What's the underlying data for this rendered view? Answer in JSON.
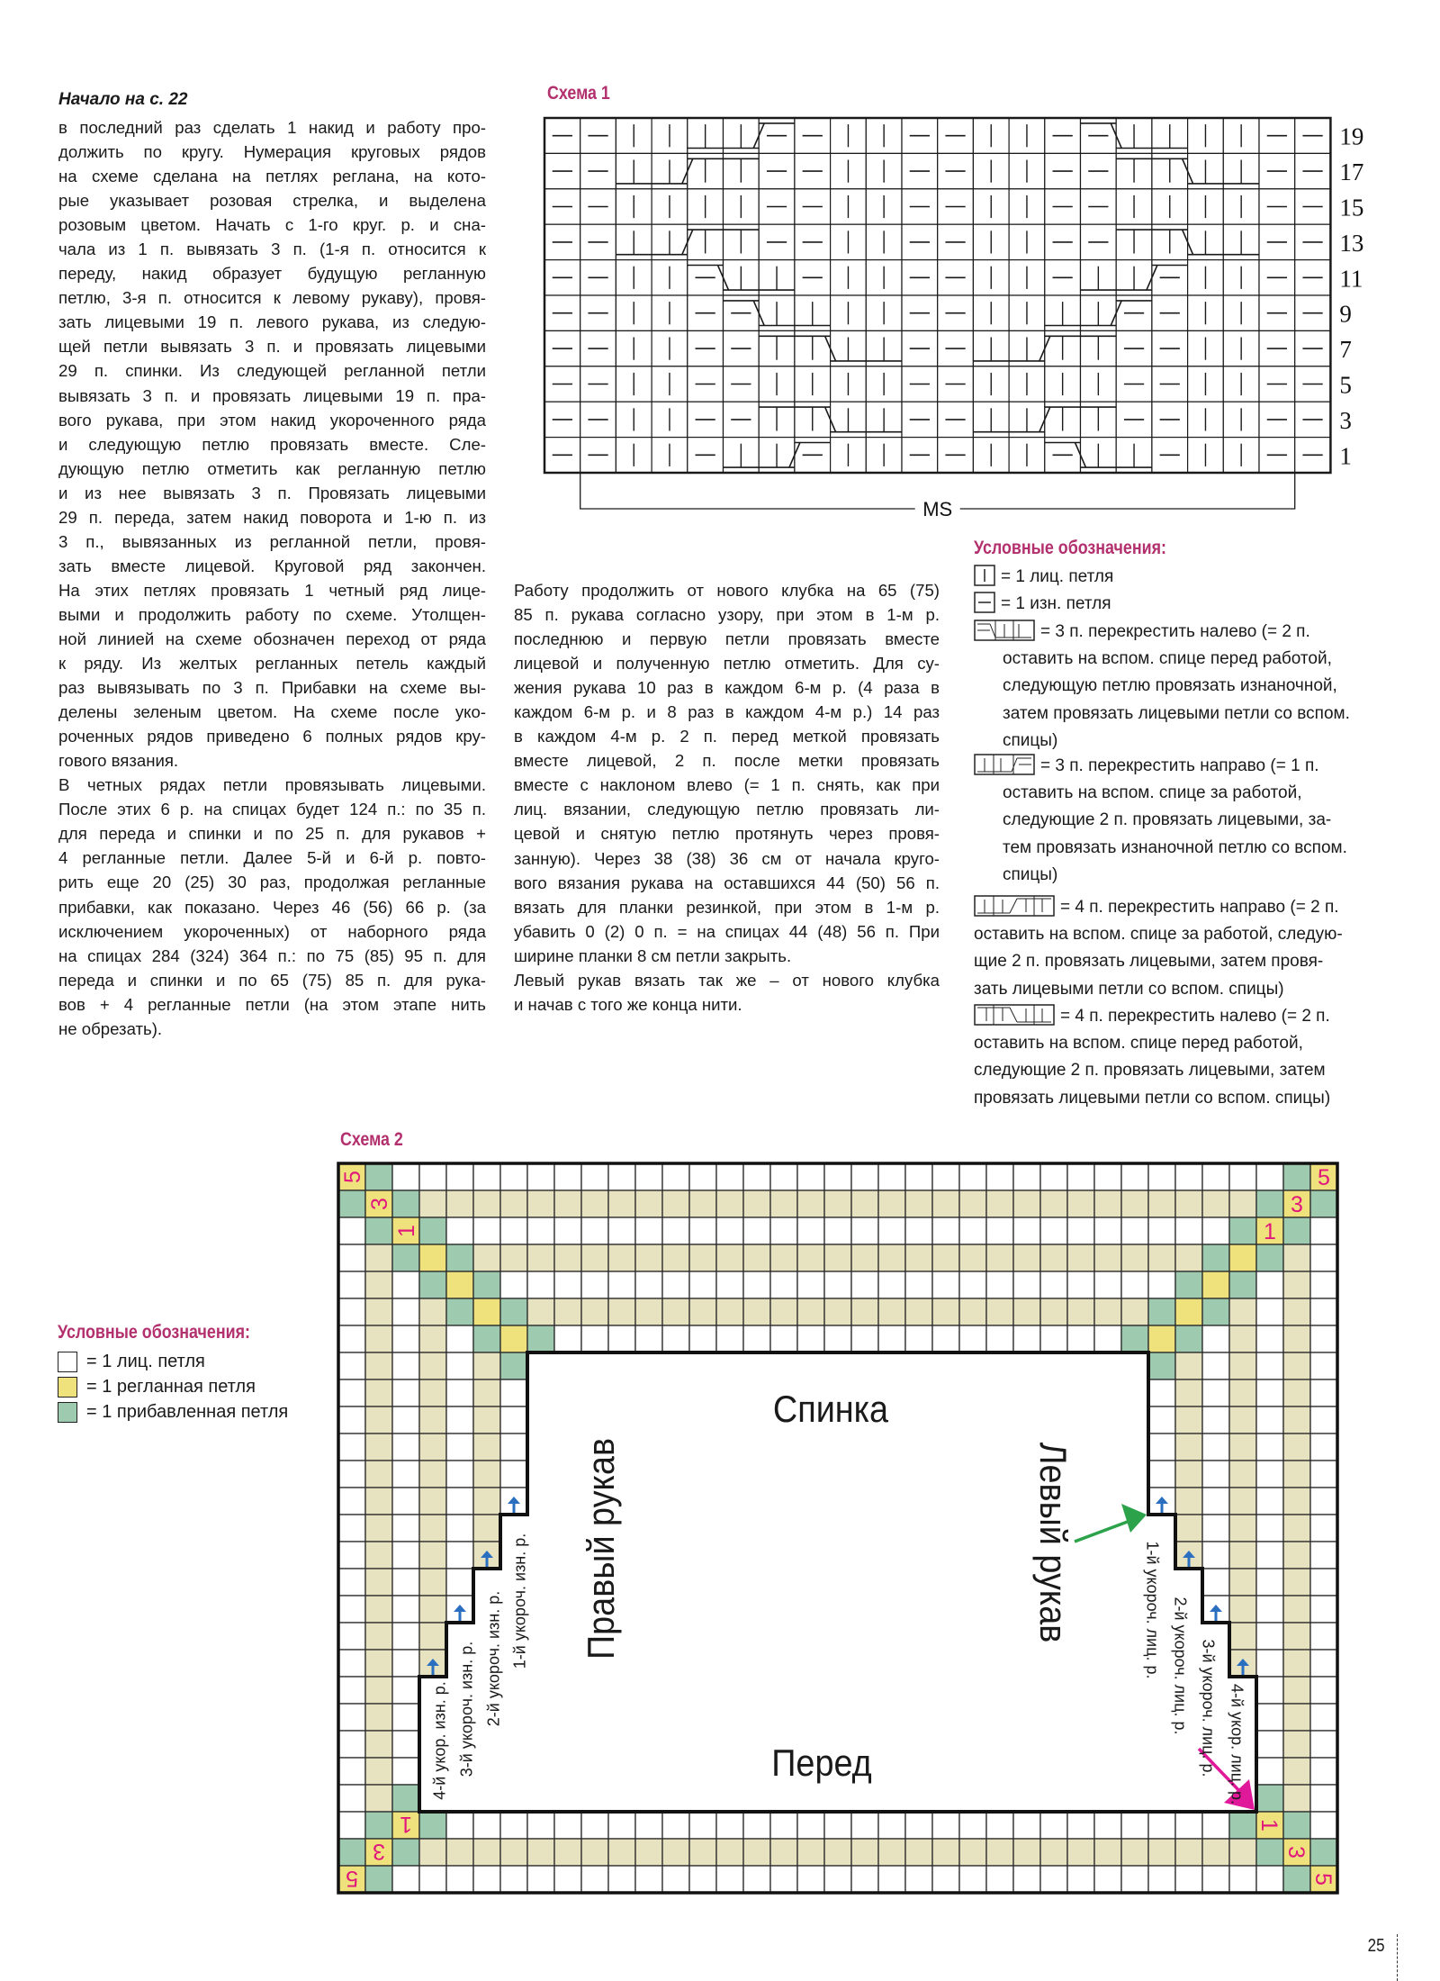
{
  "page": {
    "continued_from": "Начало на с. 22",
    "page_number": "25"
  },
  "left_column": {
    "lines": [
      "в последний раз сделать 1 накид и работу про-",
      "должить по кругу. Нумерация круговых рядов",
      "на схеме сделана на петлях реглана, на кото-",
      "рые указывает розовая стрелка, и выделена",
      "розовым цветом. Начать с 1-го круг. р. и сна-",
      "чала из 1 п. вывязать 3 п. (1-я п. относится к",
      "переду, накид образует будущую регланную",
      "петлю, 3-я п. относится к левому рукаву), провя-",
      "зать лицевыми 19 п. левого рукава, из следую-",
      "щей петли вывязать 3 п. и провязать лицевыми",
      "29 п. спинки. Из следующей регланной петли",
      "вывязать 3 п. и провязать лицевыми 19 п. пра-",
      "вого рукава, при этом накид укороченного ряда",
      "и следующую петлю провязать вместе. Сле-",
      "дующую петлю отметить как регланную петлю",
      "и из нее вывязать 3 п. Провязать лицевыми",
      "29 п. переда, затем накид поворота и 1-ю п. из",
      "3 п., вывязанных из регланной петли, провя-",
      "зать вместе лицевой. Круговой ряд закончен.",
      "На этих петлях провязать 1 четный ряд лице-",
      "выми и продолжить работу по схеме. Утолщен-",
      "ной линией на схеме обозначен переход от ряда",
      "к ряду. Из желтых регланных петель каждый",
      "раз вывязывать по 3 п. Прибавки на схеме вы-",
      "делены зеленым цветом. На схеме после уко-",
      "роченных рядов приведено 6 полных рядов кру-",
      "гового вязания.",
      "В четных рядах петли провязывать лицевыми.",
      "После этих 6 р. на спицах будет 124 п.: по 35 п.",
      "для переда и спинки и по 25 п. для рукавов +",
      "4 регланные петли. Далее 5-й и 6-й р. повто-",
      "рить еще 20 (25) 30 раз, продолжая регланные",
      "прибавки, как показано. Через 46 (56) 66 р. (за",
      "исключением укороченных) от наборного ряда",
      "на спицах 284 (324) 364 п.: по 75 (85) 95 п. для",
      "переда и спинки и по 65 (75) 85 п. для рука-",
      "вов + 4 регланные петли (на этом этапе нить",
      "не обрезать)."
    ]
  },
  "middle_column": {
    "lines": [
      "Работу продолжить от нового клубка на 65 (75)",
      "85 п. рукава согласно узору, при этом в 1-м р.",
      "последнюю и первую петли провязать вместе",
      "лицевой и полученную петлю отметить. Для су-",
      "жения рукава 10 раз в каждом 6-м р. (4 раза в",
      "каждом 6-м р. и 8 раз в каждом 4-м р.) 14 раз",
      "в каждом 4-м р. 2 п. перед меткой провязать",
      "вместе лицевой, 2 п. после метки провязать",
      "вместе с наклоном влево (= 1 п. снять, как при",
      "лиц. вязании, следующую петлю провязать ли-",
      "цевой и снятую петлю протянуть через провя-",
      "занную). Через 38 (38) 36 см от начала круго-",
      "вого вязания рукава на оставшихся 44 (50) 56 п.",
      "вязать для планки резинкой, при этом в 1-м р.",
      "убавить 0 (2) 0 п. = на спицах 44 (48) 56 п. При",
      "ширине планки 8 см петли закрыть.",
      "Левый рукав вязать так же – от нового клубка",
      "и начав с того же конца нити."
    ]
  },
  "schema1": {
    "title": "Схема 1",
    "repeat_label": "MS",
    "symbols": {
      "p": "purl",
      "k": "knit",
      "B": "knit-cable-bottom",
      "T": "knit-cable-top",
      "P": "purl-cable-top"
    },
    "rows": [
      {
        "number": "19",
        "cells": "ppkkBBPpkkppkkpPBBkkpp"
      },
      {
        "number": "17",
        "cells": "ppBBTTppkkppkkppTTBBpp"
      },
      {
        "number": "15",
        "cells": "ppkkkkppkkppkkppkkkkpp"
      },
      {
        "number": "13",
        "cells": "ppBBTTppkkppkkppTTBBpp"
      },
      {
        "number": "11",
        "cells": "ppkkPBBpkkppkkpBBPkkpp"
      },
      {
        "number": "9",
        "cells": "ppkkpPBBkkppkkBBPpkkpp"
      },
      {
        "number": "7",
        "cells": "ppkkppTTBBppBBTTppkkpp"
      },
      {
        "number": "5",
        "cells": "ppkkppkkkkppkkkkppkkpp"
      },
      {
        "number": "3",
        "cells": "ppkkppTTBBppBBTTppkkpp"
      },
      {
        "number": "1",
        "cells": "ppkkpBBPkkppkkPBBpkkpp"
      }
    ]
  },
  "legend1": {
    "title": "Условные обозначения:",
    "items": [
      {
        "symbol": "knit-stitch-icon",
        "lines": [
          "= 1 лиц. петля"
        ]
      },
      {
        "symbol": "purl-stitch-icon",
        "lines": [
          "= 1 изн. петля"
        ]
      },
      {
        "symbol": "cable-3-left-icon",
        "lines": [
          "= 3 п. перекрестить налево (= 2 п.",
          "оставить на вспом. спице перед работой,",
          "следующую петлю провязать изнаночной,",
          "затем провязать лицевыми петли со вспом.",
          "спицы)"
        ]
      },
      {
        "symbol": "cable-3-right-icon",
        "lines": [
          "= 3 п. перекрестить направо (= 1 п.",
          "оставить на вспом. спице за работой,",
          "следующие 2 п. провязать лицевыми, за-",
          "тем провязать изнаночной петлю со вспом.",
          "спицы)"
        ]
      },
      {
        "symbol": "cable-4-right-icon",
        "lines": [
          "= 4 п. перекрестить направо (= 2 п.",
          "оставить на вспом. спице за работой, следую-",
          "щие 2 п. провязать лицевыми, затем провя-",
          "зать лицевыми петли со вспом. спицы)"
        ]
      },
      {
        "symbol": "cable-4-left-icon",
        "lines": [
          "= 4 п. перекрестить налево (= 2 п.",
          "оставить на вспом. спице перед работой,",
          "следующие 2 п. провязать лицевыми, затем",
          "провязать лицевыми петли со вспом. спицы)"
        ]
      }
    ]
  },
  "schema2": {
    "title": "Схема 2",
    "colors": {
      "w": "#ffffff",
      "b": "#e7e2c0",
      "g": "#9ecab0",
      "y": "#efe27c",
      "number": "#e0187c",
      "arrow_blue": "#2a6fc0",
      "arrow_green": "#2ca24a",
      "arrow_pink": "#e0189a"
    },
    "grid": [
      "ygwwwwwwwwwwwwwwwwwwwwwwwwwwwwwwwwwgy",
      "gygbbbbbbbbbbbbbbbbbbbbbbbbbbbbbbbgyg",
      "wgygwwwwwwwwwwwwwwwwwwwwwwwwwwwwwgygw",
      "wbgygbbbbbbbbbbbbbbbbbbbbbbbbbbbgygbw",
      "wbwgygwwwwwwwwwwwwwwwwwwwwwwwwwgygwbw",
      "wbwbgygbbbbbbbbbbbbbbbbbbbbbbbgygbwbw",
      "wbwbwgygwwwwwwwwwwwwwwwwwwwwwgygwbwbw",
      "wbwbwbgxxxxxxxxxxxxxxxxxxxxxxxgbwbwbw",
      "wbwbwbwxxxxxxxxxxxxxxxxxxxxxxxwbwbwbw",
      "wbwbwbwxxxxxxxxxxxxxxxxxxxxxxxwbwbwbw",
      "wbwbwbwxxxxxxxxxxxxxxxxxxxxxxxwbwbwbw",
      "wbwbwbwxxxxxxxxxxxxxxxxxxxxxxxwbwbwbw",
      "wbwbwbwxxxxxxxxxxxxxxxxxxxxxxxwbwbwbw",
      "wbwbwbxxxxxxxxxxxxxxxxxxxxxxxxxbwbwbw",
      "wbwbwbxxxxxxxxxxxxxxxxxxxxxxxxxbwbwbw",
      "wbwbwxxxxxxxxxxxxxxxxxxxxxxxxxxxwbwbw",
      "wbwbwxxxxxxxxxxxxxxxxxxxxxxxxxxxwbwbw",
      "wbwbxxxxxxxxxxxxxxxxxxxxxxxxxxxxxbwbw",
      "wbwbxxxxxxxxxxxxxxxxxxxxxxxxxxxxxbwbw",
      "wbwxxxxxxxxxxxxxxxxxxxxxxxxxxxxxxxwbw",
      "wbwxxxxxxxxxxxxxxxxxxxxxxxxxxxxxxxwbw",
      "wbwxxxxxxxxxxxxxxxxxxxxxxxxxxxxxxxwbw",
      "wbwxxxxxxxxxxxxxxxxxxxxxxxxxxxxxxxwbw",
      "wbgxxxxxxxxxxxxxxxxxxxxxxxxxxxxxxxgbw",
      "wgygwwwwwwwwwwwwwwwwwwwwwwwwwwwwwgygw",
      "gygbbbbbbbbbbbbbbbbbbbbbbbbbbbbbbbgyg",
      "ygwwwwwwwwwwwwwwwwwwwwwwwwwwwwwwwwwgy"
    ],
    "regl_numbers": {
      "row_outer": "5",
      "row_middle": "3",
      "row_inner": "1"
    },
    "parts": {
      "back": "Спинка",
      "front": "Перед",
      "right_sleeve": "Правый рукав",
      "left_sleeve": "Левый рукав"
    },
    "short_rows_left": [
      "1-й укороч. изн. р.",
      "2-й укороч. изн. р.",
      "3-й укороч. изн. р.",
      "4-й укор. изн. р."
    ],
    "short_rows_right": [
      "1-й укороч. лиц. р.",
      "2-й укороч. лиц. р.",
      "3-й укороч. лиц. р.",
      "4-й укор. лиц. р."
    ]
  },
  "legend2": {
    "title": "Условные обозначения:",
    "items": [
      {
        "swatch": "#ffffff",
        "label": "= 1 лиц. петля"
      },
      {
        "swatch": "#efe27c",
        "label": "= 1 регланная петля"
      },
      {
        "swatch": "#9ecab0",
        "label": "= 1 прибавленная петля"
      }
    ]
  }
}
